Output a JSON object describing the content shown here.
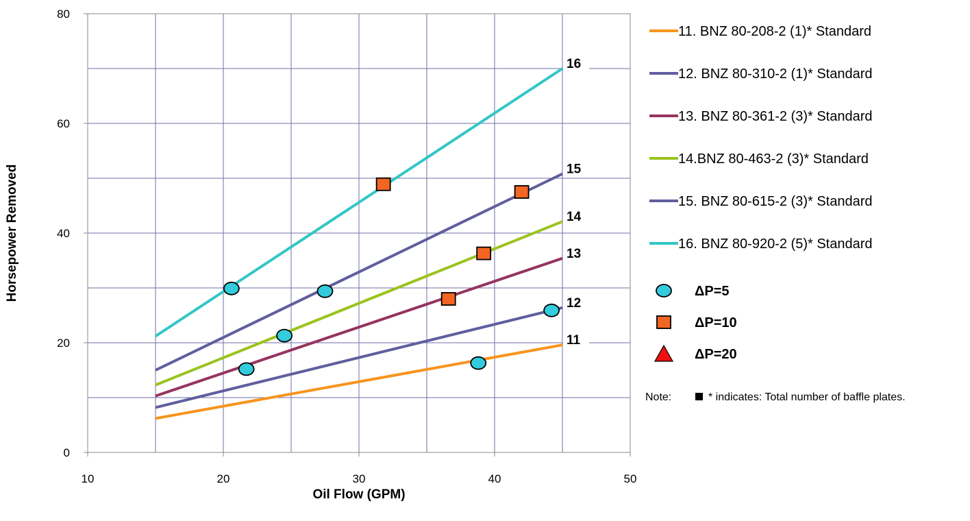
{
  "chart_data": {
    "type": "line",
    "title": "",
    "xlabel": "Oil Flow (GPM)",
    "ylabel": "Horsepower Removed",
    "xlim": [
      10,
      50
    ],
    "ylim": [
      0,
      80
    ],
    "xticks": [
      10,
      20,
      30,
      40,
      50
    ],
    "yticks": [
      0,
      20,
      40,
      60,
      80
    ],
    "grid": true,
    "legend_position": "right",
    "series": [
      {
        "name": "11. BNZ 80-208-2 (1)* Standard",
        "label": "11",
        "color": "#f7941d",
        "x": [
          15,
          45
        ],
        "y": [
          6.2,
          19.6
        ]
      },
      {
        "name": "12. BNZ 80-310-2 (1)* Standard",
        "label": "12",
        "color": "#5f5f9e",
        "x": [
          15,
          45
        ],
        "y": [
          8.2,
          26.4
        ]
      },
      {
        "name": "13. BNZ 80-361-2 (3)* Standard",
        "label": "13",
        "color": "#953460",
        "x": [
          15,
          45
        ],
        "y": [
          10.3,
          35.4
        ]
      },
      {
        "name": "14.BNZ 80-463-2 (3)* Standard",
        "label": "14",
        "color": "#9bc31f",
        "x": [
          15,
          45
        ],
        "y": [
          12.3,
          42.1
        ]
      },
      {
        "name": "15. BNZ 80-615-2 (3)* Standard",
        "label": "15",
        "color": "#5f5f9e",
        "x": [
          15,
          45
        ],
        "y": [
          15.0,
          50.8
        ]
      },
      {
        "name": "16. BNZ 80-920-2 (5)* Standard",
        "label": "16",
        "color": "#33c6c6",
        "x": [
          15,
          45
        ],
        "y": [
          21.2,
          70.0
        ]
      }
    ],
    "markers": [
      {
        "name": "ΔP=5",
        "shape": "circle",
        "color": "#33ccdd",
        "points": [
          [
            20.6,
            29.9
          ],
          [
            21.7,
            15.2
          ],
          [
            24.5,
            21.3
          ],
          [
            27.5,
            29.4
          ],
          [
            38.8,
            16.3
          ],
          [
            44.2,
            25.9
          ]
        ]
      },
      {
        "name": "ΔP=10",
        "shape": "square",
        "color": "#f26522",
        "points": [
          [
            31.8,
            48.9
          ],
          [
            42.0,
            47.5
          ],
          [
            39.2,
            36.3
          ],
          [
            36.6,
            28.0
          ]
        ]
      },
      {
        "name": "ΔP=20",
        "shape": "triangle",
        "color": "#ee1111",
        "points": []
      }
    ],
    "note": {
      "prefix": "Note:",
      "text": "* indicates: Total number of baffle plates."
    }
  }
}
